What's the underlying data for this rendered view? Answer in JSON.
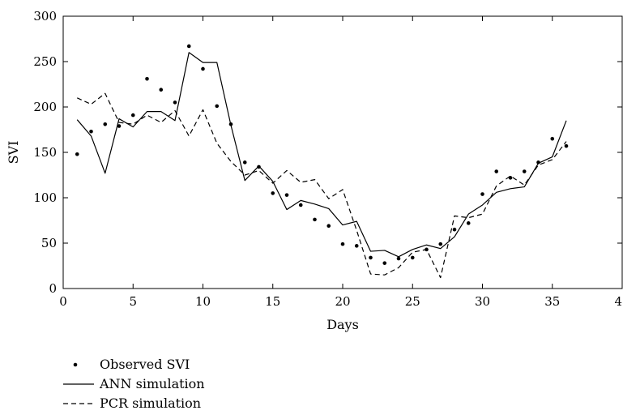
{
  "chart_data": {
    "type": "line",
    "xlabel": "Days",
    "ylabel": "SVI",
    "xlim": [
      0,
      40
    ],
    "ylim": [
      0,
      300
    ],
    "x_ticks": [
      0,
      5,
      10,
      15,
      20,
      25,
      30,
      35,
      40
    ],
    "y_ticks": [
      0,
      50,
      100,
      150,
      200,
      250,
      300
    ],
    "grid": false,
    "legend_position": "bottom-left",
    "x": [
      1,
      2,
      3,
      4,
      5,
      6,
      7,
      8,
      9,
      10,
      11,
      12,
      13,
      14,
      15,
      16,
      17,
      18,
      19,
      20,
      21,
      22,
      23,
      24,
      25,
      26,
      27,
      28,
      29,
      30,
      31,
      32,
      33,
      34,
      35,
      36
    ],
    "series": [
      {
        "name": "Observed SVI",
        "style": "dots",
        "values": [
          148,
          173,
          181,
          179,
          191,
          231,
          219,
          205,
          267,
          242,
          201,
          181,
          139,
          134,
          105,
          103,
          92,
          76,
          69,
          49,
          47,
          34,
          28,
          33,
          34,
          43,
          49,
          65,
          72,
          104,
          129,
          122,
          129,
          139,
          165,
          157
        ]
      },
      {
        "name": "ANN simulation",
        "style": "solid",
        "values": [
          186,
          168,
          127,
          187,
          178,
          195,
          195,
          185,
          260,
          249,
          249,
          180,
          119,
          135,
          118,
          87,
          97,
          93,
          88,
          70,
          74,
          41,
          42,
          35,
          43,
          48,
          44,
          57,
          82,
          92,
          106,
          110,
          112,
          138,
          145,
          185
        ]
      },
      {
        "name": "PCR simulation",
        "style": "dashed",
        "values": [
          210,
          203,
          215,
          183,
          181,
          191,
          183,
          196,
          168,
          197,
          160,
          140,
          125,
          130,
          116,
          130,
          117,
          120,
          99,
          109,
          64,
          16,
          15,
          23,
          40,
          43,
          12,
          80,
          78,
          82,
          113,
          124,
          114,
          136,
          142,
          162
        ]
      }
    ]
  }
}
